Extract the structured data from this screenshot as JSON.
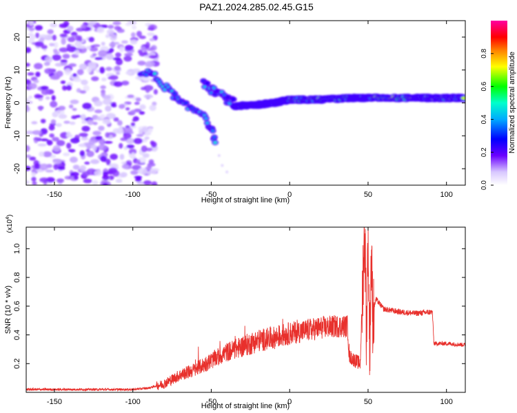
{
  "figure_title": "PAZ1.2024.285.02.45.G15",
  "colors": {
    "snr_line": "#e8302c",
    "spectro_rainbow": [
      "#ffffff",
      "#b57bff",
      "#6a00ff",
      "#0000ff",
      "#00ffff",
      "#00ff00",
      "#ffff00",
      "#ff8000",
      "#ff0000",
      "#ff00a0"
    ]
  },
  "chart_data": [
    {
      "type": "heatmap",
      "title": "PAZ1.2024.285.02.45.G15",
      "xlabel": "Height of straight line (km)",
      "ylabel": "Frequency (Hz)",
      "xlim": [
        -168,
        112
      ],
      "ylim": [
        -25,
        25
      ],
      "x_ticks": [
        -150,
        -100,
        -50,
        0,
        50,
        100
      ],
      "y_ticks": [
        -20,
        -10,
        0,
        10,
        20
      ],
      "colorbar": {
        "label": "Normalized spectral amplitude",
        "range": [
          0,
          1
        ],
        "ticks": [
          0.0,
          0.2,
          0.4,
          0.6,
          0.8
        ]
      },
      "features": [
        {
          "desc": "diffuse noise",
          "x_range": [
            -168,
            -85
          ],
          "y_range": [
            -25,
            25
          ],
          "amplitude": 0.15
        },
        {
          "desc": "descending blobs",
          "points": [
            [
              -95,
              9
            ],
            [
              -88,
              9
            ],
            [
              -82,
              6
            ],
            [
              -75,
              3
            ],
            [
              -70,
              0
            ],
            [
              -62,
              -2
            ],
            [
              -55,
              -3
            ],
            [
              -50,
              -8
            ],
            [
              -47,
              -12
            ]
          ],
          "amplitude": 0.3
        },
        {
          "desc": "upper branch",
          "points": [
            [
              -55,
              6
            ],
            [
              -50,
              4
            ],
            [
              -45,
              3
            ],
            [
              -40,
              1
            ],
            [
              -35,
              0
            ]
          ],
          "amplitude": 0.25
        },
        {
          "desc": "signal line",
          "points": [
            [
              -35,
              -1
            ],
            [
              -20,
              -0.5
            ],
            [
              -10,
              0
            ],
            [
              0,
              1
            ],
            [
              20,
              1
            ],
            [
              40,
              1.5
            ],
            [
              52,
              1.5
            ],
            [
              80,
              1.5
            ],
            [
              95,
              1.5
            ],
            [
              112,
              1.5
            ]
          ],
          "amplitude": 0.6
        }
      ]
    },
    {
      "type": "line",
      "xlabel": "Height of straight line (km)",
      "ylabel": "SNR (10 * v/v)",
      "y_multiplier": "(x10^4)",
      "xlim": [
        -168,
        112
      ],
      "ylim": [
        0,
        1.15
      ],
      "x_ticks": [
        -150,
        -100,
        -50,
        0,
        50,
        100
      ],
      "y_ticks": [
        0.2,
        0.4,
        0.6,
        0.8,
        1.0
      ],
      "series": [
        {
          "x": [
            -168,
            -150,
            -120,
            -100,
            -90,
            -80,
            -70,
            -60,
            -50,
            -40,
            -30,
            -20,
            -10,
            0,
            10,
            20,
            30,
            37,
            38,
            42,
            45,
            47,
            48,
            49,
            50,
            51,
            52,
            53,
            55,
            60,
            70,
            80,
            91,
            92,
            100,
            112
          ],
          "y": [
            0.02,
            0.02,
            0.02,
            0.02,
            0.03,
            0.06,
            0.12,
            0.16,
            0.22,
            0.28,
            0.32,
            0.36,
            0.38,
            0.41,
            0.43,
            0.45,
            0.46,
            0.46,
            0.25,
            0.22,
            0.2,
            0.9,
            1.1,
            0.4,
            1.15,
            0.3,
            0.95,
            0.55,
            0.65,
            0.58,
            0.56,
            0.55,
            0.56,
            0.34,
            0.34,
            0.33
          ]
        }
      ]
    }
  ]
}
